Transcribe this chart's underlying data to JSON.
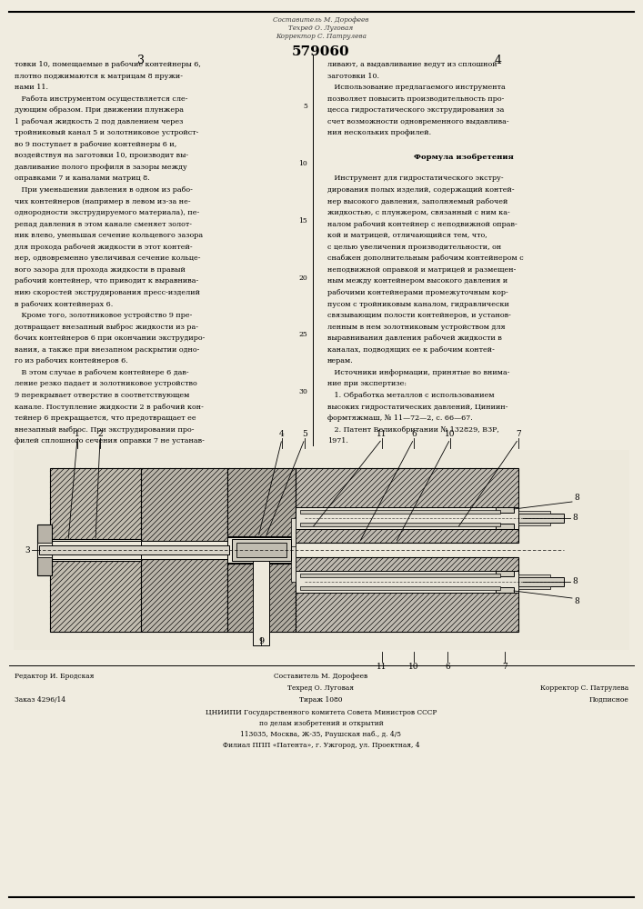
{
  "bg_color": "#f0ece0",
  "text_color": "#111111",
  "patent_number": "579060",
  "page_left": "3",
  "page_right": "4",
  "left_column_lines": [
    "товки 10, помещаемые в рабочие контейнеры 6,",
    "плотно поджимаются к матрицам 8 пружи-",
    "нами 11.",
    "   Работа инструментом осуществляется сле-",
    "дующим образом. При движении плунжера",
    "1 рабочая жидкость 2 под давлением через",
    "тройниковый канал 5 и золотниковое устройст-",
    "во 9 поступает в рабочие контейнеры 6 и,",
    "воздействуя на заготовки 10, производит вы-",
    "давливание полого профиля в зазоры между",
    "оправками 7 и каналами матриц 8.",
    "   При уменьшении давления в одном из рабо-",
    "чих контейнеров (например в левом из-за не-",
    "однородности экструдируемого материала), пе-",
    "репад давления в этом канале сменяет золот-",
    "ник влево, уменьшая сечение кольцевого зазора",
    "для прохода рабочей жидкости в этот контей-",
    "нер, одновременно увеличивая сечение кольце-",
    "вого зазора для прохода жидкости в правый",
    "рабочий контейнер, что приводит к выравнива-",
    "нию скоростей экструдирования пресс-изделий",
    "в рабочих контейнерах 6.",
    "   Кроме того, золотниковое устройство 9 пре-",
    "дотвращает внезапный выброс жидкости из ра-",
    "бочих контейнеров 6 при окончании экструдиро-",
    "вания, а также при внезапном раскрытии одно-",
    "го из рабочих контейнеров 6.",
    "   В этом случае в рабочем контейнере 6 дав-",
    "ление резко падает и золотниковое устройство",
    "9 перекрывает отверстие в соответствующем",
    "канале. Поступление жидкости 2 в рабочий кон-",
    "тейнер 6 прекращается, что предотвращает ее",
    "внезапный выброс. При экструдировании про-",
    "филей сплошного сечения оправки 7 не устанав-"
  ],
  "right_column_lines": [
    "ливают, а выдавливание ведут из сплошной",
    "заготовки 10.",
    "   Использование предлагаемого инструмента",
    "позволяет повысить производительность про-",
    "цесса гидростатического экструдирования за",
    "счет возможности одновременного выдавлива-",
    "ния нескольких профилей.",
    "",
    "Формула изобретения",
    "",
    "   Инструмент для гидростатического экстру-",
    "дирования полых изделий, содержащий контей-",
    "нер высокого давления, заполняемый рабочей",
    "жидкостью, с плунжером, связанный с ним ка-",
    "налом рабочий контейнер с неподвижной оправ-",
    "кой и матрицей, отличающийся тем, что,",
    "с целью увеличения производительности, он",
    "снабжен дополнительным рабочим контейнером с",
    "неподвижной оправкой и матрицей и размещен-",
    "ным между контейнером высокого давления и",
    "рабочими контейнерами промежуточным кор-",
    "пусом с тройниковым каналом, гидравлически",
    "связывающим полости контейнеров, и установ-",
    "ленным в нем золотниковым устройством для",
    "выравнивания давления рабочей жидкости в",
    "каналах, подводящих ее к рабочим контей-",
    "нерам.",
    "   Источники информации, принятые во внима-",
    "ние при экспертизе:",
    "   1. Обработка металлов с использованием",
    "высоких гидростатических давлений, Циниин-",
    "формтяжмаш, № 11—72—2, с. 66—67.",
    "   2. Патент Великобритании № 132829, ВЗР,",
    "1971."
  ],
  "line_numbers": [
    5,
    10,
    15,
    20,
    25,
    30
  ],
  "stamp_lines": [
    "Составитель М. Дорофеев",
    "Техред О. Луговая",
    "Корректор С. Патрулева"
  ],
  "footer_col1": [
    "Редактор И. Бродская",
    "",
    "Заказ 4296/14"
  ],
  "footer_col2": [
    "Составитель М. Дорофеев",
    "Техред О. Луговая",
    "Тираж 1080"
  ],
  "footer_col3": [
    "",
    "Корректор С. Патрулева",
    "Подписное"
  ],
  "footer_center": [
    "ЦНИИПИ Государственного комитета Совета Министров СССР",
    "по делам изобретений и открытий",
    "113035, Москва, Ж-35, Раушская наб., д. 4/5",
    "Филиал ППП «Патента», г. Ужгород, ул. Проектная, 4"
  ]
}
